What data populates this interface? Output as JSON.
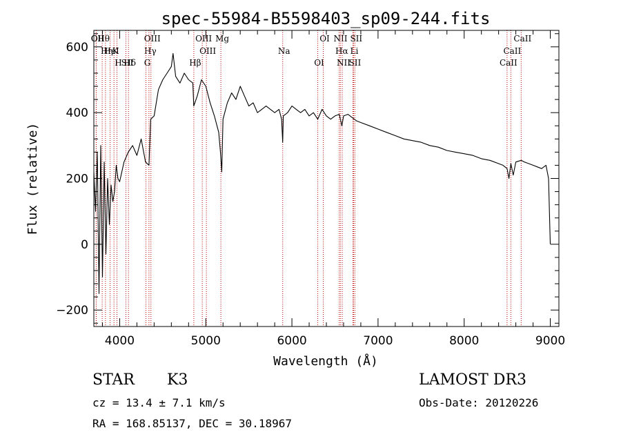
{
  "chart_data": {
    "type": "line",
    "title": "spec-55984-B5598403_sp09-244.fits",
    "xlabel": "Wavelength (Å)",
    "ylabel": "Flux (relative)",
    "xlim": [
      3700,
      9100
    ],
    "ylim": [
      -250,
      650
    ],
    "xticks": [
      4000,
      5000,
      6000,
      7000,
      8000,
      9000
    ],
    "yticks": [
      -200,
      0,
      200,
      400,
      600
    ],
    "series": [
      {
        "name": "flux",
        "x": [
          3700,
          3720,
          3740,
          3760,
          3780,
          3800,
          3820,
          3840,
          3860,
          3880,
          3900,
          3920,
          3940,
          3960,
          3980,
          4000,
          4050,
          4100,
          4150,
          4200,
          4250,
          4300,
          4340,
          4360,
          4400,
          4450,
          4500,
          4550,
          4600,
          4620,
          4650,
          4700,
          4750,
          4800,
          4850,
          4860,
          4900,
          4950,
          5000,
          5050,
          5100,
          5150,
          5170,
          5185,
          5200,
          5250,
          5300,
          5350,
          5400,
          5450,
          5500,
          5550,
          5600,
          5650,
          5700,
          5750,
          5800,
          5850,
          5880,
          5893,
          5900,
          5950,
          6000,
          6050,
          6100,
          6150,
          6200,
          6250,
          6300,
          6350,
          6400,
          6450,
          6500,
          6550,
          6563,
          6580,
          6600,
          6650,
          6700,
          6750,
          6800,
          6900,
          7000,
          7100,
          7200,
          7300,
          7400,
          7500,
          7600,
          7700,
          7800,
          7900,
          8000,
          8100,
          8200,
          8300,
          8400,
          8450,
          8498,
          8520,
          8542,
          8570,
          8600,
          8662,
          8700,
          8750,
          8800,
          8850,
          8900,
          8950,
          8980,
          9000
        ],
        "y": [
          220,
          100,
          280,
          -150,
          300,
          -100,
          250,
          -30,
          200,
          60,
          180,
          130,
          160,
          240,
          200,
          190,
          250,
          280,
          300,
          270,
          320,
          250,
          240,
          380,
          390,
          470,
          500,
          520,
          540,
          580,
          510,
          490,
          520,
          500,
          490,
          420,
          450,
          500,
          480,
          430,
          390,
          340,
          280,
          220,
          380,
          430,
          460,
          440,
          480,
          450,
          420,
          430,
          400,
          410,
          420,
          410,
          400,
          410,
          380,
          310,
          390,
          400,
          420,
          410,
          400,
          410,
          390,
          400,
          380,
          410,
          390,
          380,
          390,
          395,
          380,
          360,
          390,
          395,
          385,
          375,
          370,
          360,
          350,
          340,
          330,
          320,
          315,
          310,
          300,
          295,
          285,
          280,
          275,
          270,
          260,
          255,
          245,
          240,
          230,
          200,
          245,
          210,
          250,
          255,
          250,
          245,
          240,
          235,
          230,
          240,
          200,
          0
        ]
      }
    ],
    "lines": [
      {
        "label": "Hθ",
        "x": 3797
      },
      {
        "label": "K",
        "x": 3933.7
      },
      {
        "label": "Hδ",
        "x": 4102
      },
      {
        "label": "OII",
        "x": 3727
      },
      {
        "label": "HeI",
        "x": 3889
      },
      {
        "label": "SII",
        "x": 4072
      },
      {
        "label": "OII",
        "x": 3729
      },
      {
        "label": "Hη",
        "x": 3835
      },
      {
        "label": "H",
        "x": 3968.5
      },
      {
        "label": "OIII",
        "x": 4363
      },
      {
        "label": "Hγ",
        "x": 4340
      },
      {
        "label": "G",
        "x": 4305
      },
      {
        "label": "OIII",
        "x": 4959
      },
      {
        "label": "OIII",
        "x": 5007
      },
      {
        "label": "Hβ",
        "x": 4861
      },
      {
        "label": "Mg",
        "x": 5175
      },
      {
        "label": "Na",
        "x": 5893
      },
      {
        "label": "OI",
        "x": 6300
      },
      {
        "label": "OI",
        "x": 6364
      },
      {
        "label": "Hα",
        "x": 6563
      },
      {
        "label": "SII",
        "x": 6716
      },
      {
        "label": "NII",
        "x": 6548
      },
      {
        "label": "Li",
        "x": 6708
      },
      {
        "label": "NII",
        "x": 6584
      },
      {
        "label": "SII",
        "x": 6731
      },
      {
        "label": "CaII",
        "x": 8542
      },
      {
        "label": "CaII",
        "x": 8498
      },
      {
        "label": "CaII",
        "x": 8662
      }
    ]
  },
  "info": {
    "class": "STAR",
    "subclass": "K3",
    "survey": "LAMOST DR3",
    "cz": "cz = 13.4 ± 7.1 km/s",
    "obs_date": "Obs-Date: 20120226",
    "radec": "RA = 168.85137, DEC =  30.18967"
  }
}
